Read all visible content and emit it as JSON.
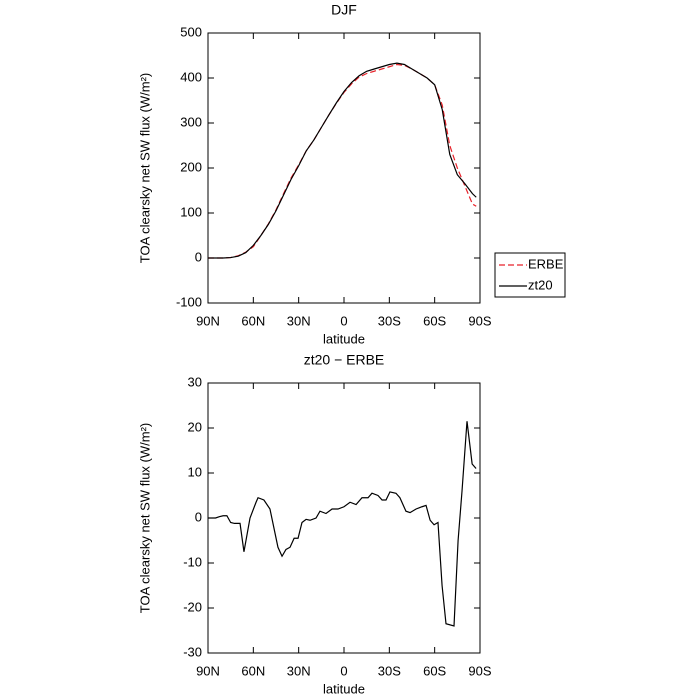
{
  "chart_data": [
    {
      "type": "line",
      "title": "DJF",
      "x_label": "latitude",
      "y_label": "TOA clearsky net SW flux (W/m²)",
      "x": [
        90,
        85,
        80,
        75,
        70,
        65,
        60,
        55,
        50,
        45,
        40,
        35,
        30,
        25,
        20,
        15,
        10,
        5,
        0,
        -5,
        -10,
        -15,
        -20,
        -25,
        -30,
        -35,
        -40,
        -45,
        -50,
        -55,
        -60,
        -65,
        -70,
        -75,
        -80,
        -85,
        -87.5
      ],
      "series": [
        {
          "name": "ERBE",
          "color": "#e8222a",
          "dash": true,
          "values": [
            0,
            0,
            0,
            1,
            5,
            13,
            25,
            50,
            76,
            107,
            143,
            178,
            207,
            238,
            262,
            290,
            318,
            344,
            368,
            387,
            402,
            410,
            415,
            420,
            425,
            430,
            428,
            420,
            410,
            400,
            385,
            340,
            250,
            200,
            160,
            120,
            115
          ]
        },
        {
          "name": "zt20",
          "color": "#000000",
          "dash": false,
          "values": [
            0,
            0,
            0,
            1,
            4,
            12,
            28,
            50,
            75,
            105,
            140,
            175,
            205,
            238,
            262,
            290,
            318,
            345,
            370,
            390,
            405,
            415,
            420,
            425,
            430,
            433,
            430,
            420,
            410,
            400,
            385,
            330,
            230,
            185,
            165,
            143,
            135
          ]
        }
      ],
      "xlim": [
        90,
        -90
      ],
      "xticks": [
        {
          "value": 90,
          "label": "90N"
        },
        {
          "value": 60,
          "label": "60N"
        },
        {
          "value": 30,
          "label": "30N"
        },
        0,
        {
          "value": -30,
          "label": "30S"
        },
        {
          "value": -60,
          "label": "60S"
        },
        {
          "value": -90,
          "label": "90S"
        }
      ],
      "ylim": [
        -100,
        500
      ],
      "yticks": [
        -100,
        0,
        100,
        200,
        300,
        400,
        500
      ],
      "legend": "right"
    },
    {
      "type": "line",
      "title": "zt20 − ERBE",
      "x_label": "latitude",
      "y_label": "TOA clearsky net SW flux (W/m²)",
      "x": [
        90,
        87.5,
        85,
        82.5,
        80,
        77.5,
        75,
        72.5,
        68.8,
        66.2,
        62.2,
        58.2,
        56.9,
        53,
        49,
        43.7,
        41,
        38.4,
        35.7,
        33,
        30.4,
        27.8,
        25.1,
        22.5,
        18.5,
        15.9,
        11.9,
        7.9,
        4,
        0,
        -4,
        -8,
        -11.9,
        -15.9,
        -18.5,
        -22.5,
        -25.2,
        -27.8,
        -30.4,
        -34.4,
        -37,
        -41,
        -43.7,
        -47.7,
        -51.6,
        -54.3,
        -57,
        -59.6,
        -62.2,
        -64.9,
        -67.5,
        -72.8,
        -75.5,
        -78.1,
        -81.4,
        -84.8,
        -87.4
      ],
      "series": [
        {
          "name": "zt20 − ERBE",
          "color": "#000000",
          "dash": false,
          "values": [
            0,
            0,
            0,
            0.3,
            0.5,
            0.5,
            -1,
            -1.2,
            -1.2,
            -7.5,
            0,
            3.5,
            4.5,
            4,
            2,
            -6.5,
            -8.5,
            -7,
            -6.5,
            -4.5,
            -4.5,
            -1,
            -0.3,
            -0.5,
            0,
            1.5,
            1,
            2,
            2,
            2.5,
            3.5,
            3,
            4.5,
            4.5,
            5.5,
            5,
            4,
            4,
            5.8,
            5.5,
            4.5,
            1.5,
            1.2,
            2,
            2.5,
            2.8,
            -0.5,
            -1.5,
            -1,
            -15,
            -23.5,
            -24,
            -5,
            6,
            21.5,
            12,
            11
          ]
        }
      ],
      "xlim": [
        90,
        -90
      ],
      "xticks": [
        {
          "value": 90,
          "label": "90N"
        },
        {
          "value": 60,
          "label": "60N"
        },
        {
          "value": 30,
          "label": "30N"
        },
        0,
        {
          "value": -30,
          "label": "30S"
        },
        {
          "value": -60,
          "label": "60S"
        },
        {
          "value": -90,
          "label": "90S"
        }
      ],
      "ylim": [
        -30,
        30
      ],
      "yticks": [
        -30,
        -20,
        -10,
        0,
        10,
        20,
        30
      ]
    }
  ]
}
